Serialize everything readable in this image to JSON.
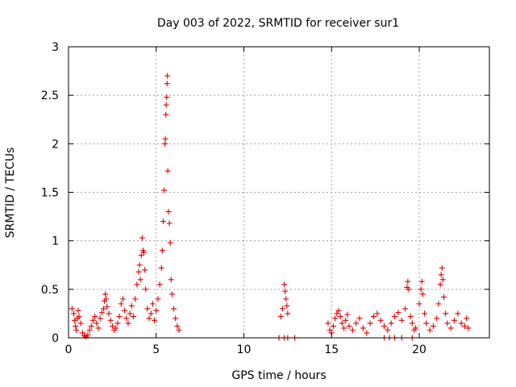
{
  "chart_data": {
    "type": "scatter",
    "title": "Day 003 of 2022, SRMTID for receiver sur1",
    "xlabel": "GPS time / hours",
    "ylabel": "SRMTID / TECUs",
    "xlim": [
      0,
      24
    ],
    "ylim": [
      0,
      3
    ],
    "xticks": [
      0,
      5,
      10,
      15,
      20
    ],
    "yticks": [
      0,
      0.5,
      1,
      1.5,
      2,
      2.5,
      3
    ],
    "xtick_labels": [
      "0",
      "5",
      "10",
      "15",
      "20"
    ],
    "ytick_labels": [
      "0",
      "0.5",
      "1",
      "1.5",
      "2",
      "2.5",
      "3"
    ],
    "grid": true,
    "marker": "+",
    "color": "#e00000",
    "series": [
      {
        "name": "sur1",
        "points": [
          [
            0.2,
            0.3
          ],
          [
            0.3,
            0.25
          ],
          [
            0.35,
            0.18
          ],
          [
            0.4,
            0.12
          ],
          [
            0.45,
            0.08
          ],
          [
            0.5,
            0.2
          ],
          [
            0.55,
            0.28
          ],
          [
            0.6,
            0.22
          ],
          [
            0.7,
            0.15
          ],
          [
            0.8,
            0.05
          ],
          [
            0.9,
            0.02
          ],
          [
            1.0,
            0.01
          ],
          [
            1.1,
            0.03
          ],
          [
            1.2,
            0.08
          ],
          [
            1.3,
            0.12
          ],
          [
            1.4,
            0.18
          ],
          [
            1.5,
            0.22
          ],
          [
            1.6,
            0.15
          ],
          [
            1.7,
            0.1
          ],
          [
            1.8,
            0.2
          ],
          [
            1.9,
            0.26
          ],
          [
            2.0,
            0.3
          ],
          [
            2.05,
            0.38
          ],
          [
            2.1,
            0.45
          ],
          [
            2.15,
            0.4
          ],
          [
            2.2,
            0.32
          ],
          [
            2.3,
            0.25
          ],
          [
            2.4,
            0.18
          ],
          [
            2.5,
            0.12
          ],
          [
            2.6,
            0.08
          ],
          [
            2.7,
            0.1
          ],
          [
            2.8,
            0.15
          ],
          [
            2.9,
            0.22
          ],
          [
            3.0,
            0.35
          ],
          [
            3.1,
            0.4
          ],
          [
            3.2,
            0.28
          ],
          [
            3.3,
            0.2
          ],
          [
            3.4,
            0.15
          ],
          [
            3.5,
            0.25
          ],
          [
            3.6,
            0.33
          ],
          [
            3.7,
            0.22
          ],
          [
            3.8,
            0.4
          ],
          [
            3.9,
            0.55
          ],
          [
            4.0,
            0.68
          ],
          [
            4.05,
            0.75
          ],
          [
            4.1,
            0.6
          ],
          [
            4.15,
            0.85
          ],
          [
            4.2,
            1.03
          ],
          [
            4.25,
            0.9
          ],
          [
            4.3,
            0.88
          ],
          [
            4.35,
            0.7
          ],
          [
            4.4,
            0.5
          ],
          [
            4.5,
            0.3
          ],
          [
            4.6,
            0.2
          ],
          [
            4.7,
            0.25
          ],
          [
            4.8,
            0.35
          ],
          [
            4.9,
            0.18
          ],
          [
            5.0,
            0.28
          ],
          [
            5.1,
            0.4
          ],
          [
            5.2,
            0.55
          ],
          [
            5.3,
            0.72
          ],
          [
            5.35,
            0.9
          ],
          [
            5.4,
            1.2
          ],
          [
            5.45,
            1.52
          ],
          [
            5.5,
            2.0
          ],
          [
            5.52,
            2.05
          ],
          [
            5.55,
            2.3
          ],
          [
            5.57,
            2.4
          ],
          [
            5.6,
            2.48
          ],
          [
            5.62,
            2.62
          ],
          [
            5.64,
            2.7
          ],
          [
            5.66,
            1.72
          ],
          [
            5.7,
            1.3
          ],
          [
            5.75,
            1.18
          ],
          [
            5.8,
            0.98
          ],
          [
            5.85,
            0.6
          ],
          [
            5.9,
            0.45
          ],
          [
            6.0,
            0.3
          ],
          [
            6.1,
            0.2
          ],
          [
            6.2,
            0.12
          ],
          [
            6.3,
            0.08
          ],
          [
            12.1,
            0.22
          ],
          [
            12.2,
            0.3
          ],
          [
            12.3,
            0.55
          ],
          [
            12.35,
            0.48
          ],
          [
            12.4,
            0.4
          ],
          [
            12.45,
            0.33
          ],
          [
            12.5,
            0.25
          ],
          [
            12.0,
            0.0
          ],
          [
            12.3,
            0.0
          ],
          [
            12.5,
            0.0
          ],
          [
            12.9,
            0.0
          ],
          [
            14.8,
            0.15
          ],
          [
            14.9,
            0.08
          ],
          [
            15.0,
            0.05
          ],
          [
            15.1,
            0.12
          ],
          [
            15.2,
            0.2
          ],
          [
            15.3,
            0.25
          ],
          [
            15.4,
            0.28
          ],
          [
            15.5,
            0.22
          ],
          [
            15.6,
            0.15
          ],
          [
            15.7,
            0.1
          ],
          [
            15.8,
            0.18
          ],
          [
            15.9,
            0.24
          ],
          [
            16.0,
            0.12
          ],
          [
            16.2,
            0.08
          ],
          [
            16.4,
            0.15
          ],
          [
            16.6,
            0.2
          ],
          [
            16.8,
            0.1
          ],
          [
            17.0,
            0.05
          ],
          [
            17.2,
            0.15
          ],
          [
            17.4,
            0.22
          ],
          [
            17.6,
            0.25
          ],
          [
            17.8,
            0.18
          ],
          [
            18.0,
            0.12
          ],
          [
            18.2,
            0.08
          ],
          [
            18.4,
            0.15
          ],
          [
            18.6,
            0.22
          ],
          [
            18.8,
            0.26
          ],
          [
            19.0,
            0.18
          ],
          [
            19.2,
            0.3
          ],
          [
            19.3,
            0.52
          ],
          [
            19.35,
            0.58
          ],
          [
            19.4,
            0.5
          ],
          [
            19.5,
            0.22
          ],
          [
            19.6,
            0.15
          ],
          [
            19.7,
            0.08
          ],
          [
            19.8,
            0.1
          ],
          [
            20.0,
            0.35
          ],
          [
            20.1,
            0.5
          ],
          [
            20.15,
            0.58
          ],
          [
            20.2,
            0.45
          ],
          [
            20.3,
            0.25
          ],
          [
            20.4,
            0.15
          ],
          [
            20.6,
            0.08
          ],
          [
            20.8,
            0.12
          ],
          [
            21.0,
            0.2
          ],
          [
            21.1,
            0.35
          ],
          [
            21.2,
            0.55
          ],
          [
            21.25,
            0.65
          ],
          [
            21.3,
            0.72
          ],
          [
            21.35,
            0.6
          ],
          [
            21.4,
            0.42
          ],
          [
            21.5,
            0.25
          ],
          [
            21.6,
            0.15
          ],
          [
            21.8,
            0.1
          ],
          [
            22.0,
            0.18
          ],
          [
            22.2,
            0.25
          ],
          [
            22.4,
            0.15
          ],
          [
            22.6,
            0.12
          ],
          [
            22.7,
            0.2
          ],
          [
            22.8,
            0.1
          ],
          [
            18.0,
            0.0
          ],
          [
            18.3,
            0.0
          ],
          [
            18.6,
            0.0
          ],
          [
            19.0,
            0.0
          ],
          [
            19.6,
            0.0
          ]
        ]
      }
    ]
  }
}
